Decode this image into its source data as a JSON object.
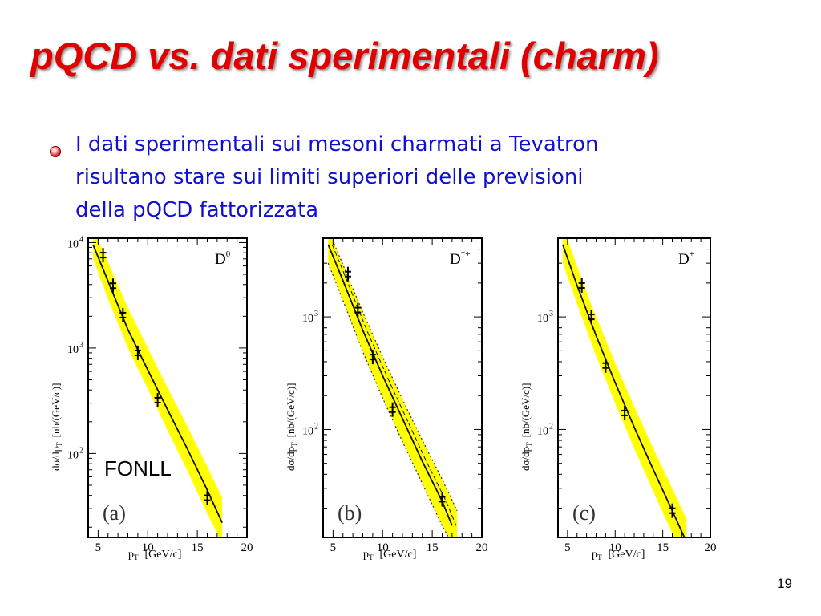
{
  "slide": {
    "title": "pQCD vs. dati sperimentali (charm)",
    "bullet_lines": [
      "I dati sperimentali sui mesoni charmati a Tevatron",
      "risultano stare sui limiti superiori delle previsioni",
      "della pQCD fattorizzata"
    ],
    "page_number": "19",
    "colors": {
      "title": "#e00000",
      "bullet_text": "#1010d0",
      "band": "#ffff00"
    }
  },
  "chart_data": [
    {
      "type": "scatter",
      "panel_label": "(a)",
      "particle": "D",
      "particle_sup": "0",
      "annotation": "FONLL",
      "xlabel": "p",
      "xlabel_sub": "T",
      "xlabel_unit": "[GeV/c]",
      "ylabel": "dσ/dp",
      "ylabel_sub": "T",
      "ylabel_unit": "[nb/(GeV/c)]",
      "xlim": [
        4,
        20
      ],
      "ylim": [
        16,
        11000
      ],
      "yscale": "log",
      "x_ticks": [
        5,
        10,
        15,
        20
      ],
      "y_ticks": [
        {
          "value": 100,
          "label": "10",
          "exp": "2"
        },
        {
          "value": 1000,
          "label": "10",
          "exp": "3"
        },
        {
          "value": 10000,
          "label": "10",
          "exp": "4"
        }
      ],
      "series": [
        {
          "name": "data",
          "x": [
            5.5,
            6.5,
            7.5,
            9.0,
            11.0,
            16.0
          ],
          "y": [
            7600,
            3900,
            2050,
            900,
            320,
            38
          ]
        },
        {
          "name": "FONLL central",
          "x": [
            4.5,
            6,
            8,
            10,
            12,
            14,
            16,
            17.5
          ],
          "y": [
            9500,
            4300,
            1500,
            620,
            260,
            110,
            45,
            22
          ]
        }
      ],
      "band": {
        "x": [
          4.5,
          6,
          8,
          10,
          12,
          14,
          16,
          17.5
        ],
        "upper": [
          14000,
          6500,
          2400,
          1000,
          420,
          180,
          75,
          38
        ],
        "lower": [
          7000,
          2900,
          1000,
          410,
          165,
          68,
          27,
          14
        ]
      }
    },
    {
      "type": "scatter",
      "panel_label": "(b)",
      "particle": "D",
      "particle_sup": "*+",
      "xlabel": "p",
      "xlabel_sub": "T",
      "xlabel_unit": "[GeV/c]",
      "ylabel": "dσ/dp",
      "ylabel_sub": "T",
      "ylabel_unit": "[nb/(GeV/c)]",
      "xlim": [
        4,
        20
      ],
      "ylim": [
        11,
        5000
      ],
      "yscale": "log",
      "x_ticks": [
        5,
        10,
        15,
        20
      ],
      "y_ticks": [
        {
          "value": 100,
          "label": "10",
          "exp": "2"
        },
        {
          "value": 1000,
          "label": "10",
          "exp": "3"
        }
      ],
      "series": [
        {
          "name": "data",
          "x": [
            6.5,
            7.5,
            9.0,
            11.0,
            16.0
          ],
          "y": [
            2400,
            1150,
            440,
            150,
            24
          ]
        },
        {
          "name": "FONLL central",
          "x": [
            4.5,
            6,
            8,
            10,
            12,
            14,
            16,
            17
          ],
          "y": [
            4400,
            2100,
            760,
            300,
            125,
            52,
            23,
            14
          ]
        }
      ],
      "band": {
        "x": [
          4.5,
          6,
          8,
          10,
          12,
          14,
          16,
          17.5
        ],
        "upper": [
          6000,
          2900,
          1100,
          440,
          185,
          80,
          36,
          19
        ],
        "lower": [
          3000,
          1400,
          490,
          190,
          78,
          33,
          14,
          8
        ]
      }
    },
    {
      "type": "scatter",
      "panel_label": "(c)",
      "particle": "D",
      "particle_sup": "+",
      "xlabel": "p",
      "xlabel_sub": "T",
      "xlabel_unit": "[GeV/c]",
      "ylabel": "dσ/dp",
      "ylabel_sub": "T",
      "ylabel_unit": "[nb/(GeV/c)]",
      "xlim": [
        4,
        20
      ],
      "ylim": [
        11,
        5000
      ],
      "yscale": "log",
      "x_ticks": [
        5,
        10,
        15,
        20
      ],
      "y_ticks": [
        {
          "value": 100,
          "label": "10",
          "exp": "2"
        },
        {
          "value": 1000,
          "label": "10",
          "exp": "3"
        }
      ],
      "series": [
        {
          "name": "data",
          "x": [
            6.5,
            7.5,
            9.0,
            11.0,
            16.0
          ],
          "y": [
            1900,
            1000,
            370,
            140,
            19
          ]
        },
        {
          "name": "FONLL central",
          "x": [
            4.5,
            6,
            8,
            10,
            12,
            14,
            16,
            17.5
          ],
          "y": [
            4400,
            1900,
            680,
            260,
            105,
            44,
            19,
            10
          ]
        }
      ],
      "band": {
        "x": [
          4.5,
          6,
          8,
          10,
          12,
          14,
          16,
          17.5
        ],
        "upper": [
          6500,
          2800,
          1000,
          390,
          160,
          68,
          30,
          16
        ],
        "lower": [
          3000,
          1300,
          450,
          170,
          68,
          28,
          12,
          6
        ]
      }
    }
  ]
}
